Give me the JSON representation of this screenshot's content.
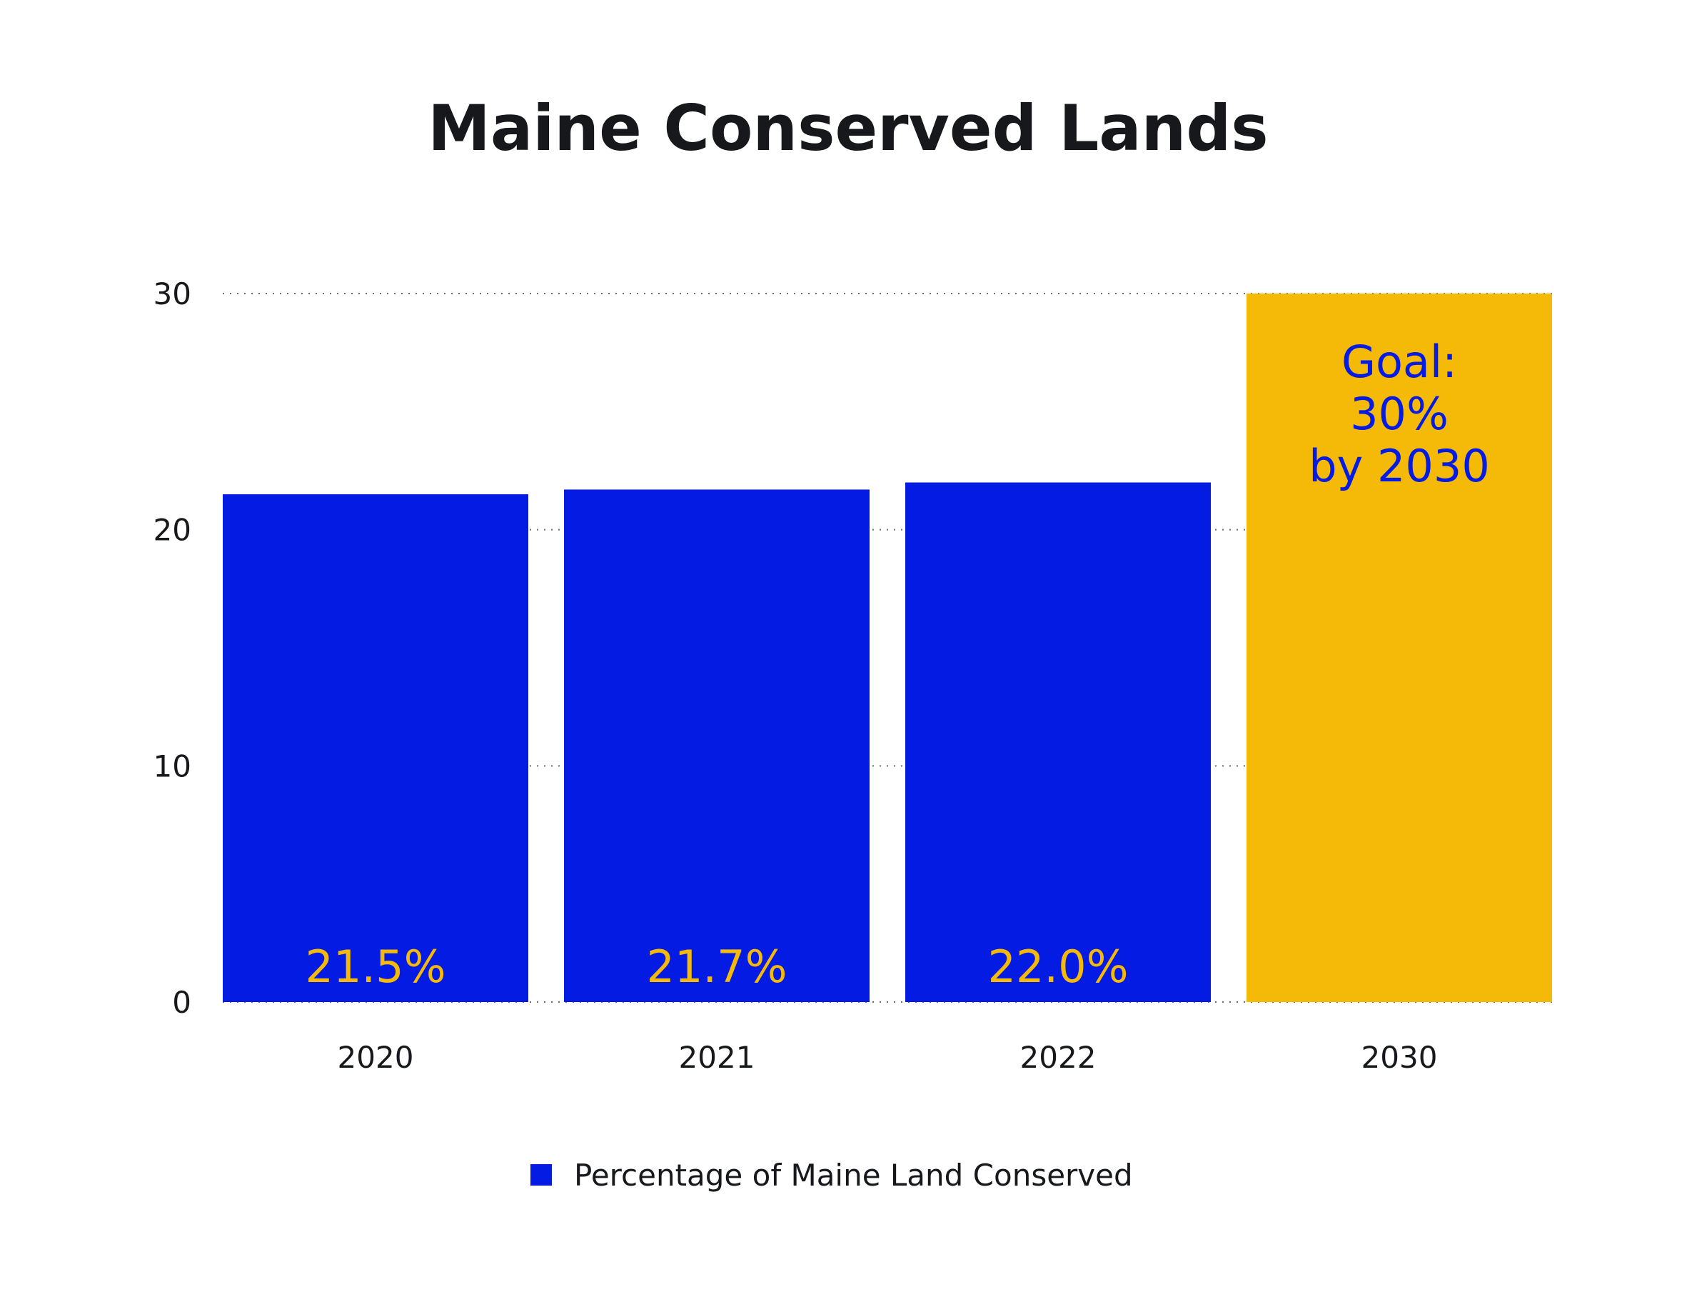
{
  "chart_data": {
    "type": "bar",
    "title": "Maine Conserved Lands",
    "categories": [
      "2020",
      "2021",
      "2022",
      "2030"
    ],
    "series": [
      {
        "name": "Percentage of Maine Land Conserved",
        "values": [
          21.5,
          21.7,
          22.0,
          30
        ],
        "data_labels": [
          "21.5%",
          "21.7%",
          "22.0%",
          ""
        ]
      }
    ],
    "annotation": {
      "lines": [
        "Goal:",
        "30%",
        "by 2030"
      ]
    },
    "ylim": [
      0,
      30
    ],
    "yticks": [
      0,
      10,
      20,
      30
    ],
    "ytick_labels": [
      "0",
      "10",
      "20",
      "30"
    ],
    "xlabel": "",
    "ylabel": "",
    "grid": "horizontal dotted",
    "legend": {
      "position": "bottom-center"
    },
    "colors": {
      "actual": "#041be4",
      "goal": "#f5b908",
      "actual_label": "#f5b908",
      "goal_label": "#041be4",
      "text": "#16181c",
      "grid": "#6b6b6b"
    },
    "goal_category": "2030"
  }
}
